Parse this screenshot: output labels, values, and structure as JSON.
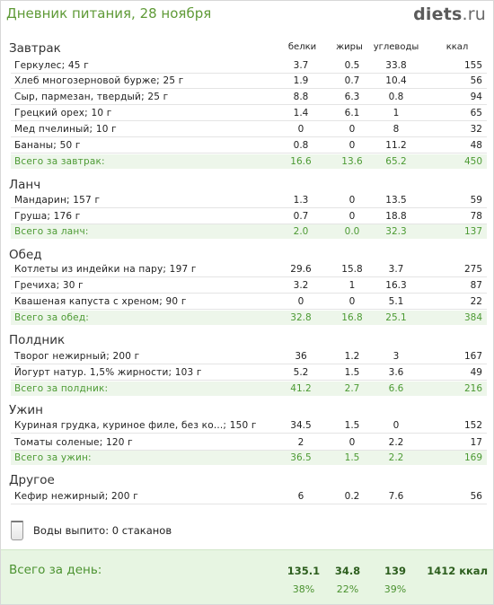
{
  "header": {
    "title": "Дневник питания, 28 ноября",
    "logo_main": "diets",
    "logo_domain": ".ru"
  },
  "columns": {
    "protein": "белки",
    "fat": "жиры",
    "carbs": "углеводы",
    "kcal": "ккал"
  },
  "sections": [
    {
      "title": "Завтрак",
      "items": [
        {
          "name": "Геркулес; 45 г",
          "protein": "3.7",
          "fat": "0.5",
          "carbs": "33.8",
          "kcal": "155"
        },
        {
          "name": "Хлеб многозерновой бурже; 25 г",
          "protein": "1.9",
          "fat": "0.7",
          "carbs": "10.4",
          "kcal": "56"
        },
        {
          "name": "Сыр, пармезан, твердый; 25 г",
          "protein": "8.8",
          "fat": "6.3",
          "carbs": "0.8",
          "kcal": "94"
        },
        {
          "name": "Грецкий орех; 10 г",
          "protein": "1.4",
          "fat": "6.1",
          "carbs": "1",
          "kcal": "65"
        },
        {
          "name": "Мед пчелиный; 10 г",
          "protein": "0",
          "fat": "0",
          "carbs": "8",
          "kcal": "32"
        },
        {
          "name": "Бананы; 50 г",
          "protein": "0.8",
          "fat": "0",
          "carbs": "11.2",
          "kcal": "48"
        }
      ],
      "total": {
        "name": "Всего за завтрак:",
        "protein": "16.6",
        "fat": "13.6",
        "carbs": "65.2",
        "kcal": "450"
      }
    },
    {
      "title": "Ланч",
      "items": [
        {
          "name": "Мандарин; 157 г",
          "protein": "1.3",
          "fat": "0",
          "carbs": "13.5",
          "kcal": "59"
        },
        {
          "name": "Груша; 176 г",
          "protein": "0.7",
          "fat": "0",
          "carbs": "18.8",
          "kcal": "78"
        }
      ],
      "total": {
        "name": "Всего за ланч:",
        "protein": "2.0",
        "fat": "0.0",
        "carbs": "32.3",
        "kcal": "137"
      }
    },
    {
      "title": "Обед",
      "items": [
        {
          "name": "Котлеты из индейки на пару; 197 г",
          "protein": "29.6",
          "fat": "15.8",
          "carbs": "3.7",
          "kcal": "275"
        },
        {
          "name": "Гречиха; 30 г",
          "protein": "3.2",
          "fat": "1",
          "carbs": "16.3",
          "kcal": "87"
        },
        {
          "name": "Квашеная капуста с хреном; 90 г",
          "protein": "0",
          "fat": "0",
          "carbs": "5.1",
          "kcal": "22"
        }
      ],
      "total": {
        "name": "Всего за обед:",
        "protein": "32.8",
        "fat": "16.8",
        "carbs": "25.1",
        "kcal": "384"
      }
    },
    {
      "title": "Полдник",
      "items": [
        {
          "name": "Творог нежирный; 200 г",
          "protein": "36",
          "fat": "1.2",
          "carbs": "3",
          "kcal": "167"
        },
        {
          "name": "Йогурт натур. 1,5% жирности; 103 г",
          "protein": "5.2",
          "fat": "1.5",
          "carbs": "3.6",
          "kcal": "49"
        }
      ],
      "total": {
        "name": "Всего за полдник:",
        "protein": "41.2",
        "fat": "2.7",
        "carbs": "6.6",
        "kcal": "216"
      }
    },
    {
      "title": "Ужин",
      "items": [
        {
          "name": "Куриная грудка, куриное филе, без ко...; 150 г",
          "protein": "34.5",
          "fat": "1.5",
          "carbs": "0",
          "kcal": "152"
        },
        {
          "name": "Томаты соленые; 120 г",
          "protein": "2",
          "fat": "0",
          "carbs": "2.2",
          "kcal": "17"
        }
      ],
      "total": {
        "name": "Всего за ужин:",
        "protein": "36.5",
        "fat": "1.5",
        "carbs": "2.2",
        "kcal": "169"
      }
    },
    {
      "title": "Другое",
      "items": [
        {
          "name": "Кефир нежирный; 200 г",
          "protein": "6",
          "fat": "0.2",
          "carbs": "7.6",
          "kcal": "56"
        }
      ]
    }
  ],
  "water": {
    "text": "Воды выпито: 0 стаканов"
  },
  "day_total": {
    "label": "Всего за день:",
    "protein": "135.1",
    "fat": "34.8",
    "carbs": "139",
    "kcal": "1412 ккал",
    "protein_pct": "38%",
    "fat_pct": "22%",
    "carbs_pct": "39%"
  }
}
